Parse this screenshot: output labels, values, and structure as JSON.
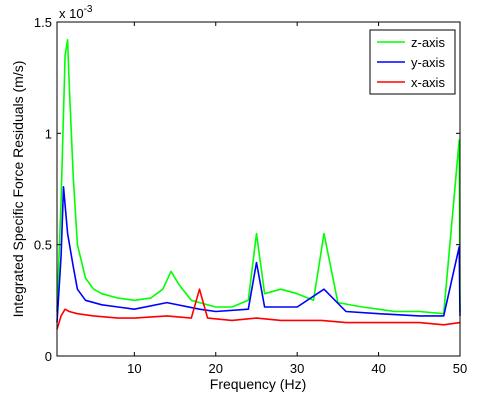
{
  "chart_data": {
    "type": "line",
    "xlabel": "Frequency (Hz)",
    "ylabel": "Integrated Specific Force Residuals (m/s)",
    "y_exponent_base": "x 10",
    "y_exponent_power": "-3",
    "xlim": [
      0.5,
      50
    ],
    "ylim": [
      0,
      0.0015
    ],
    "x_ticks": [
      10,
      20,
      30,
      40,
      50
    ],
    "x_tick_labels": [
      "10",
      "20",
      "30",
      "40",
      "50"
    ],
    "y_ticks": [
      0,
      0.0005,
      0.001,
      0.0015
    ],
    "y_tick_labels": [
      "0",
      "0.5",
      "1",
      "1.5"
    ],
    "grid": false,
    "legend_position": "top-right",
    "series": [
      {
        "name": "z-axis",
        "color": "#00ff00",
        "x": [
          0.5,
          1.0,
          1.5,
          1.8,
          2.0,
          2.5,
          3.0,
          4.0,
          5.0,
          6.0,
          8.0,
          10.0,
          12.0,
          13.5,
          14.5,
          15.5,
          17.0,
          18.0,
          20.0,
          22.0,
          24.0,
          25.0,
          26.0,
          28.0,
          30.0,
          32.0,
          33.3,
          35.0,
          38.0,
          40.0,
          42.0,
          45.0,
          48.0,
          49.9,
          50.0
        ],
        "y": [
          0.0002,
          0.0007,
          0.00135,
          0.00142,
          0.00122,
          0.0008,
          0.0005,
          0.00035,
          0.0003,
          0.00028,
          0.00026,
          0.00025,
          0.00026,
          0.0003,
          0.00038,
          0.00032,
          0.00025,
          0.00024,
          0.00022,
          0.00022,
          0.00025,
          0.00055,
          0.00028,
          0.0003,
          0.00028,
          0.00025,
          0.00055,
          0.00024,
          0.00022,
          0.00021,
          0.0002,
          0.0002,
          0.00019,
          0.00097,
          0.0002
        ]
      },
      {
        "name": "y-axis",
        "color": "#0000ff",
        "x": [
          0.5,
          1.0,
          1.3,
          1.8,
          2.5,
          3.0,
          4.0,
          6.0,
          8.0,
          10.0,
          14.0,
          18.0,
          20.0,
          24.0,
          25.0,
          26.0,
          30.0,
          33.3,
          36.0,
          40.0,
          45.0,
          48.0,
          49.9,
          50.0
        ],
        "y": [
          0.00015,
          0.00045,
          0.00076,
          0.00055,
          0.0004,
          0.0003,
          0.00025,
          0.00023,
          0.00022,
          0.00021,
          0.00024,
          0.00021,
          0.0002,
          0.00021,
          0.00042,
          0.00022,
          0.00022,
          0.0003,
          0.0002,
          0.00019,
          0.00018,
          0.00018,
          0.00049,
          0.00018
        ]
      },
      {
        "name": "x-axis",
        "color": "#ff0000",
        "x": [
          0.5,
          1.0,
          1.5,
          2.0,
          3.0,
          5.0,
          8.0,
          10.0,
          14.0,
          17.0,
          18.0,
          19.0,
          22.0,
          25.0,
          28.0,
          30.0,
          33.0,
          36.0,
          40.0,
          45.0,
          48.0,
          50.0
        ],
        "y": [
          0.00012,
          0.00018,
          0.00021,
          0.0002,
          0.00019,
          0.00018,
          0.00017,
          0.00017,
          0.00018,
          0.00017,
          0.0003,
          0.00017,
          0.00016,
          0.00017,
          0.00016,
          0.00016,
          0.00016,
          0.00015,
          0.00015,
          0.00015,
          0.00014,
          0.00015
        ]
      }
    ]
  }
}
